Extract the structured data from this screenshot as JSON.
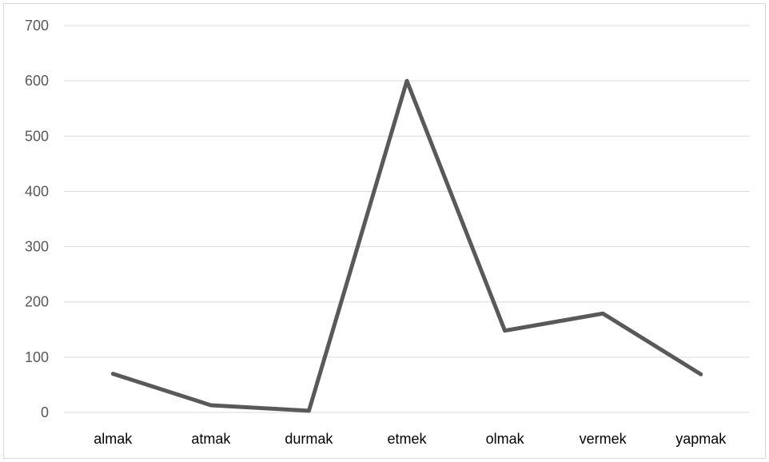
{
  "chart_data": {
    "type": "line",
    "title": "",
    "xlabel": "",
    "ylabel": "",
    "categories": [
      "almak",
      "atmak",
      "durmak",
      "etmek",
      "olmak",
      "vermek",
      "yapmak"
    ],
    "series": [
      {
        "values": [
          70,
          13,
          3,
          600,
          148,
          179,
          69
        ],
        "color": "#595959"
      }
    ],
    "ylim": [
      0,
      700
    ],
    "yticks": [
      0,
      100,
      200,
      300,
      400,
      500,
      600,
      700
    ],
    "grid": true,
    "legend": "none"
  },
  "colors": {
    "gridline": "#d9d9d9",
    "series": "#595959",
    "frame": "#d9d9d9"
  }
}
